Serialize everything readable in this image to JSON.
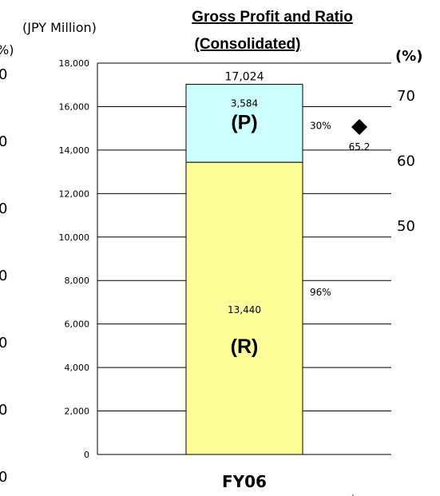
{
  "chart_data": {
    "type": "bar",
    "stacked": true,
    "title": "Gross Profit and Ratio",
    "subtitle": "(Consolidated)",
    "ylabel": "(JPY Million)",
    "y2label": "(%)",
    "categories": [
      "FY06"
    ],
    "ylim": [
      0,
      18000
    ],
    "y_ticks": [
      "0",
      "2,000",
      "4,000",
      "6,000",
      "8,000",
      "10,000",
      "12,000",
      "14,000",
      "16,000",
      "18,000"
    ],
    "y2lim": [
      15,
      75
    ],
    "y2_ticks": [
      "50",
      "60",
      "70"
    ],
    "grid": true,
    "series": [
      {
        "name": "(R)",
        "values": [
          13440
        ],
        "value_labels": [
          "13,440"
        ],
        "share_label": "96%",
        "color": "#ffff99"
      },
      {
        "name": "(P)",
        "values": [
          3584
        ],
        "value_labels": [
          "3,584"
        ],
        "share_label": "30%",
        "color": "#ccffff"
      }
    ],
    "total_labels": [
      "17,024"
    ],
    "ratio": {
      "values": [
        65.2
      ],
      "labels": [
        "65.2"
      ],
      "marker": "diamond",
      "color": "#000000"
    },
    "left_partial": {
      "unit_fragment": "%)",
      "ticks": [
        "0",
        "0",
        "0",
        "0",
        "0",
        "0",
        "0"
      ]
    }
  }
}
